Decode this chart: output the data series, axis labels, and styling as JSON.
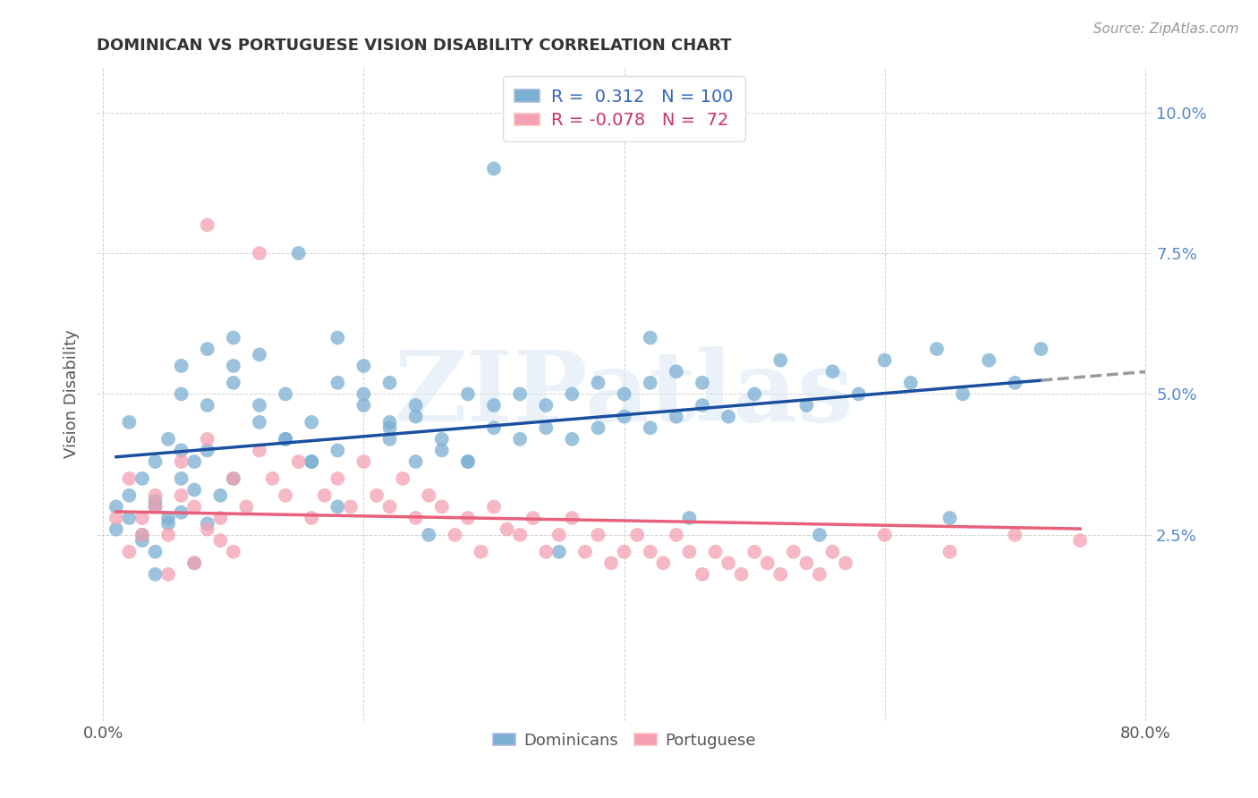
{
  "title": "DOMINICAN VS PORTUGUESE VISION DISABILITY CORRELATION CHART",
  "source": "Source: ZipAtlas.com",
  "ylabel": "Vision Disability",
  "watermark": "ZIPatlas",
  "xlim": [
    0.0,
    0.8
  ],
  "ylim": [
    -0.008,
    0.108
  ],
  "dominican_color": "#7BAFD4",
  "portuguese_color": "#F4A0B0",
  "dominican_line_color": "#1A4FA0",
  "portuguese_line_color": "#E8607A",
  "R_dominican": 0.312,
  "N_dominican": 100,
  "R_portuguese": -0.078,
  "N_portuguese": 72,
  "dominican_scatter_x": [
    0.02,
    0.03,
    0.01,
    0.04,
    0.05,
    0.02,
    0.03,
    0.01,
    0.06,
    0.04,
    0.07,
    0.05,
    0.03,
    0.08,
    0.06,
    0.04,
    0.02,
    0.09,
    0.07,
    0.05,
    0.1,
    0.08,
    0.06,
    0.04,
    0.12,
    0.1,
    0.08,
    0.06,
    0.14,
    0.12,
    0.1,
    0.08,
    0.06,
    0.16,
    0.14,
    0.12,
    0.1,
    0.18,
    0.16,
    0.14,
    0.2,
    0.18,
    0.16,
    0.22,
    0.2,
    0.18,
    0.24,
    0.22,
    0.2,
    0.26,
    0.24,
    0.22,
    0.28,
    0.26,
    0.24,
    0.3,
    0.28,
    0.32,
    0.3,
    0.28,
    0.34,
    0.32,
    0.36,
    0.34,
    0.38,
    0.36,
    0.4,
    0.38,
    0.42,
    0.4,
    0.44,
    0.42,
    0.46,
    0.44,
    0.48,
    0.46,
    0.5,
    0.52,
    0.54,
    0.56,
    0.58,
    0.6,
    0.62,
    0.64,
    0.66,
    0.68,
    0.7,
    0.72,
    0.42,
    0.3,
    0.22,
    0.15,
    0.18,
    0.25,
    0.35,
    0.45,
    0.55,
    0.65,
    0.07,
    0.04
  ],
  "dominican_scatter_y": [
    0.028,
    0.025,
    0.03,
    0.022,
    0.027,
    0.032,
    0.024,
    0.026,
    0.029,
    0.031,
    0.033,
    0.028,
    0.035,
    0.027,
    0.04,
    0.03,
    0.045,
    0.032,
    0.038,
    0.042,
    0.035,
    0.048,
    0.05,
    0.038,
    0.045,
    0.052,
    0.04,
    0.055,
    0.042,
    0.057,
    0.06,
    0.058,
    0.035,
    0.038,
    0.042,
    0.048,
    0.055,
    0.04,
    0.045,
    0.05,
    0.055,
    0.06,
    0.038,
    0.042,
    0.048,
    0.052,
    0.038,
    0.044,
    0.05,
    0.04,
    0.046,
    0.052,
    0.038,
    0.042,
    0.048,
    0.044,
    0.05,
    0.042,
    0.048,
    0.038,
    0.044,
    0.05,
    0.042,
    0.048,
    0.044,
    0.05,
    0.046,
    0.052,
    0.044,
    0.05,
    0.046,
    0.052,
    0.048,
    0.054,
    0.046,
    0.052,
    0.05,
    0.056,
    0.048,
    0.054,
    0.05,
    0.056,
    0.052,
    0.058,
    0.05,
    0.056,
    0.052,
    0.058,
    0.06,
    0.09,
    0.045,
    0.075,
    0.03,
    0.025,
    0.022,
    0.028,
    0.025,
    0.028,
    0.02,
    0.018
  ],
  "portuguese_scatter_x": [
    0.01,
    0.02,
    0.03,
    0.04,
    0.05,
    0.06,
    0.07,
    0.08,
    0.09,
    0.1,
    0.02,
    0.03,
    0.04,
    0.05,
    0.06,
    0.07,
    0.08,
    0.09,
    0.1,
    0.11,
    0.12,
    0.13,
    0.14,
    0.15,
    0.16,
    0.17,
    0.18,
    0.19,
    0.2,
    0.21,
    0.22,
    0.23,
    0.24,
    0.25,
    0.26,
    0.27,
    0.28,
    0.29,
    0.3,
    0.31,
    0.32,
    0.33,
    0.34,
    0.35,
    0.36,
    0.37,
    0.38,
    0.39,
    0.4,
    0.41,
    0.42,
    0.43,
    0.44,
    0.45,
    0.46,
    0.47,
    0.48,
    0.49,
    0.5,
    0.51,
    0.52,
    0.53,
    0.54,
    0.55,
    0.56,
    0.57,
    0.6,
    0.65,
    0.7,
    0.75,
    0.08,
    0.12
  ],
  "portuguese_scatter_y": [
    0.028,
    0.022,
    0.025,
    0.03,
    0.018,
    0.032,
    0.02,
    0.026,
    0.024,
    0.022,
    0.035,
    0.028,
    0.032,
    0.025,
    0.038,
    0.03,
    0.042,
    0.028,
    0.035,
    0.03,
    0.04,
    0.035,
    0.032,
    0.038,
    0.028,
    0.032,
    0.035,
    0.03,
    0.038,
    0.032,
    0.03,
    0.035,
    0.028,
    0.032,
    0.03,
    0.025,
    0.028,
    0.022,
    0.03,
    0.026,
    0.025,
    0.028,
    0.022,
    0.025,
    0.028,
    0.022,
    0.025,
    0.02,
    0.022,
    0.025,
    0.022,
    0.02,
    0.025,
    0.022,
    0.018,
    0.022,
    0.02,
    0.018,
    0.022,
    0.02,
    0.018,
    0.022,
    0.02,
    0.018,
    0.022,
    0.02,
    0.025,
    0.022,
    0.025,
    0.024,
    0.08,
    0.075
  ]
}
